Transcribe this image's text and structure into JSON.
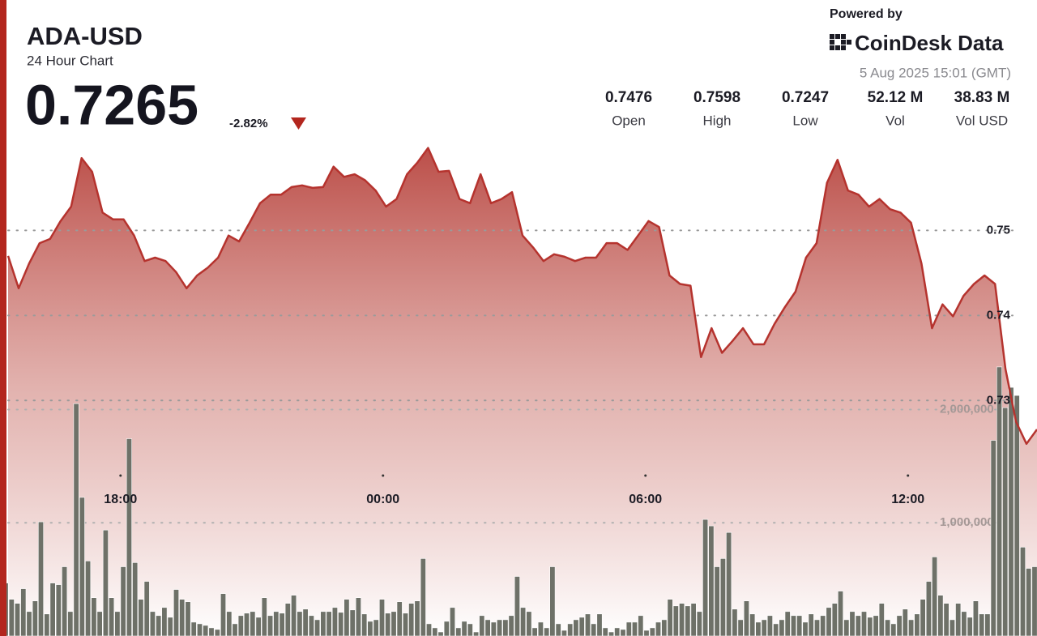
{
  "header": {
    "symbol": "ADA-USD",
    "subtitle": "24 Hour Chart",
    "price": "0.7265",
    "change": "-2.82%",
    "powered_by": "Powered by",
    "brand": "CoinDesk Data",
    "timestamp": "5 Aug 2025 15:01 (GMT)"
  },
  "stats": [
    {
      "value": "0.7476",
      "label": "Open"
    },
    {
      "value": "0.7598",
      "label": "High"
    },
    {
      "value": "0.7247",
      "label": "Low"
    },
    {
      "value": "52.12 M",
      "label": "Vol"
    },
    {
      "value": "38.83 M",
      "label": "Vol USD"
    }
  ],
  "chart_data": {
    "type": "area",
    "xlim": [
      15.43,
      38.95
    ],
    "xticks": [
      {
        "value": 18,
        "label": "18:00"
      },
      {
        "value": 24,
        "label": "00:00"
      },
      {
        "value": 30,
        "label": "06:00"
      },
      {
        "value": 36,
        "label": "12:00"
      }
    ],
    "ylim": [
      0.7023,
      0.7609
    ],
    "yticks": [
      0.73,
      0.74,
      0.75
    ],
    "y2lim": [
      0,
      4400000
    ],
    "y2ticks": [
      {
        "value": 1000000,
        "label": "1,000,000"
      },
      {
        "value": 2000000,
        "label": "2,000,000"
      }
    ],
    "grid": true,
    "series": [
      {
        "color": "#b5332e",
        "values": [
          0.747,
          0.7432,
          0.7461,
          0.7485,
          0.749,
          0.7511,
          0.7528,
          0.7585,
          0.7569,
          0.7521,
          0.7513,
          0.7513,
          0.7494,
          0.7464,
          0.7468,
          0.7464,
          0.7451,
          0.7432,
          0.7447,
          0.7456,
          0.7468,
          0.7494,
          0.7487,
          0.7509,
          0.7532,
          0.7542,
          0.7542,
          0.7551,
          0.7553,
          0.755,
          0.7551,
          0.7575,
          0.7563,
          0.7566,
          0.7559,
          0.7547,
          0.7528,
          0.7537,
          0.7566,
          0.758,
          0.7597,
          0.7569,
          0.757,
          0.7537,
          0.7532,
          0.7566,
          0.7532,
          0.7537,
          0.7545,
          0.7494,
          0.748,
          0.7464,
          0.7472,
          0.7469,
          0.7464,
          0.7468,
          0.7468,
          0.7485,
          0.7485,
          0.7477,
          0.7494,
          0.7511,
          0.7504,
          0.7447,
          0.7437,
          0.7435,
          0.7351,
          0.7385,
          0.7356,
          0.737,
          0.7385,
          0.7366,
          0.7366,
          0.739,
          0.741,
          0.7428,
          0.7468,
          0.7485,
          0.7556,
          0.7583,
          0.7547,
          0.7542,
          0.7528,
          0.7537,
          0.7525,
          0.7521,
          0.7509,
          0.7461,
          0.7385,
          0.7413,
          0.7399,
          0.7423,
          0.7437,
          0.7447,
          0.7437,
          0.7337,
          0.7275,
          0.7249,
          0.7266
        ]
      },
      {
        "type": "bar",
        "axis": "y2",
        "color": "#6e7168",
        "values": [
          468000,
          324000,
          288000,
          417600,
          216000,
          309600,
          1008000,
          194400,
          468000,
          453600,
          612000,
          216000,
          2052000,
          1224000,
          662400,
          338400,
          216000,
          936000,
          338400,
          216000,
          612000,
          1742400,
          648000,
          324000,
          482400,
          216000,
          180000,
          252000,
          165600,
          410400,
          324000,
          302400,
          122400,
          108000,
          93600,
          72000,
          57600,
          374400,
          216000,
          108000,
          180000,
          201600,
          216000,
          165600,
          338400,
          180000,
          216000,
          201600,
          288000,
          360000,
          216000,
          237600,
          180000,
          144000,
          216000,
          216000,
          252000,
          208800,
          324000,
          230400,
          338400,
          194400,
          129600,
          144000,
          324000,
          201600,
          216000,
          302400,
          201600,
          288000,
          309600,
          684000,
          108000,
          72000,
          36000,
          129600,
          252000,
          72000,
          129600,
          108000,
          36000,
          180000,
          144000,
          122400,
          144000,
          144000,
          180000,
          525600,
          252000,
          216000,
          72000,
          122400,
          72000,
          612000,
          108000,
          50400,
          108000,
          144000,
          165600,
          194400,
          108000,
          194400,
          72000,
          36000,
          72000,
          57600,
          122400,
          122400,
          180000,
          50400,
          72000,
          122400,
          144000,
          324000,
          266400,
          288000,
          266400,
          288000,
          216000,
          1029600,
          972000,
          612000,
          684000,
          914400,
          237600,
          144000,
          309600,
          194400,
          122400,
          144000,
          180000,
          108000,
          144000,
          216000,
          180000,
          180000,
          122400,
          194400,
          144000,
          180000,
          252000,
          288000,
          396000,
          144000,
          216000,
          180000,
          216000,
          165600,
          180000,
          288000,
          144000,
          108000,
          180000,
          237600,
          144000,
          194400,
          324000,
          482400,
          698400,
          360000,
          288000,
          144000,
          288000,
          216000,
          165600,
          309600,
          194400,
          194400,
          1728000,
          2376000,
          2016000,
          2196000,
          2124000,
          784800,
          597600,
          612000
        ]
      }
    ]
  }
}
